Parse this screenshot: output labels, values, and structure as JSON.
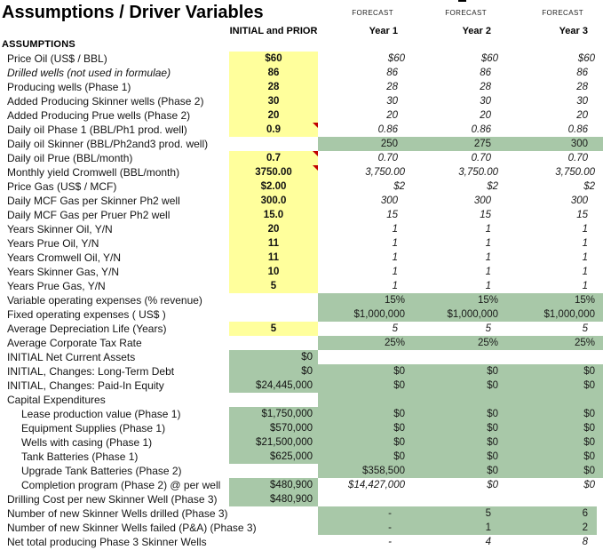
{
  "title": "Assumptions / Driver Variables",
  "headers": {
    "forecast_label": "FORECAST",
    "initial": "INITIAL and PRIOR",
    "years": [
      "Year 1",
      "Year 2",
      "Year 3"
    ],
    "section": "ASSUMPTIONS"
  },
  "colors": {
    "input_yellow": "#FFFF9C",
    "calc_green": "#A8C8A8",
    "comment_red": "#C00000"
  },
  "rows": [
    {
      "label": "Price Oil (US$ / BBL)",
      "init": {
        "v": "$60",
        "bg": "yellow"
      },
      "fc": {
        "v": [
          "$60",
          "$60",
          "$60"
        ],
        "bg": "white"
      }
    },
    {
      "label": "Drilled wells (not used in formulae)",
      "li": true,
      "init": {
        "v": "86",
        "bg": "yellow"
      },
      "fc": {
        "v": [
          "86",
          "86",
          "86"
        ],
        "bg": "white"
      }
    },
    {
      "label": "Producing wells (Phase 1)",
      "init": {
        "v": "28",
        "bg": "yellow"
      },
      "fc": {
        "v": [
          "28",
          "28",
          "28"
        ],
        "bg": "white"
      }
    },
    {
      "label": "Added Producing Skinner wells (Phase 2)",
      "init": {
        "v": "30",
        "bg": "yellow"
      },
      "fc": {
        "v": [
          "30",
          "30",
          "30"
        ],
        "bg": "white"
      }
    },
    {
      "label": "Added Producing Prue wells (Phase 2)",
      "init": {
        "v": "20",
        "bg": "yellow"
      },
      "fc": {
        "v": [
          "20",
          "20",
          "20"
        ],
        "bg": "white"
      }
    },
    {
      "label": "Daily oil Phase 1 (BBL/Ph1 prod. well)",
      "init": {
        "v": "0.9",
        "bg": "yellow",
        "c": true
      },
      "fc": {
        "v": [
          "0.86",
          "0.86",
          "0.86"
        ],
        "bg": "white"
      }
    },
    {
      "label": "Daily oil Skinner (BBL/Ph2and3 prod. well)",
      "init": {
        "v": "",
        "bg": "white"
      },
      "fc": {
        "v": [
          "250",
          "275",
          "300"
        ],
        "bg": "green"
      }
    },
    {
      "label": "Daily oil Prue (BBL/month)",
      "init": {
        "v": "0.7",
        "bg": "yellow",
        "c": true
      },
      "fc": {
        "v": [
          "0.70",
          "0.70",
          "0.70"
        ],
        "bg": "white"
      }
    },
    {
      "label": "Monthly yield Cromwell (BBL/month)",
      "init": {
        "v": "3750.00",
        "bg": "yellow",
        "c": true
      },
      "fc": {
        "v": [
          "3,750.00",
          "3,750.00",
          "3,750.00"
        ],
        "bg": "white"
      }
    },
    {
      "label": "Price Gas (US$ / MCF)",
      "init": {
        "v": "$2.00",
        "bg": "yellow"
      },
      "fc": {
        "v": [
          "$2",
          "$2",
          "$2"
        ],
        "bg": "white"
      }
    },
    {
      "label": "Daily MCF Gas per Skinner Ph2 well",
      "init": {
        "v": "300.0",
        "bg": "yellow"
      },
      "fc": {
        "v": [
          "300",
          "300",
          "300"
        ],
        "bg": "white"
      }
    },
    {
      "label": "Daily MCF Gas per Pruer Ph2 well",
      "init": {
        "v": "15.0",
        "bg": "yellow"
      },
      "fc": {
        "v": [
          "15",
          "15",
          "15"
        ],
        "bg": "white"
      }
    },
    {
      "label": "Years Skinner Oil, Y/N",
      "init": {
        "v": "20",
        "bg": "yellow"
      },
      "fc": {
        "v": [
          "1",
          "1",
          "1"
        ],
        "bg": "white"
      }
    },
    {
      "label": "Years Prue Oil, Y/N",
      "init": {
        "v": "11",
        "bg": "yellow"
      },
      "fc": {
        "v": [
          "1",
          "1",
          "1"
        ],
        "bg": "white"
      }
    },
    {
      "label": "Years Cromwell Oil, Y/N",
      "init": {
        "v": "11",
        "bg": "yellow"
      },
      "fc": {
        "v": [
          "1",
          "1",
          "1"
        ],
        "bg": "white"
      }
    },
    {
      "label": "Years Skinner Gas, Y/N",
      "init": {
        "v": "10",
        "bg": "yellow"
      },
      "fc": {
        "v": [
          "1",
          "1",
          "1"
        ],
        "bg": "white"
      }
    },
    {
      "label": "Years Prue Gas, Y/N",
      "init": {
        "v": "5",
        "bg": "yellow"
      },
      "fc": {
        "v": [
          "1",
          "1",
          "1"
        ],
        "bg": "white"
      }
    },
    {
      "label": "Variable operating expenses (% revenue)",
      "init": {
        "v": "",
        "bg": "white"
      },
      "fc": {
        "v": [
          "15%",
          "15%",
          "15%"
        ],
        "bg": "green"
      }
    },
    {
      "label": "Fixed operating expenses ( US$ )",
      "init": {
        "v": "",
        "bg": "white"
      },
      "fc": {
        "v": [
          "$1,000,000",
          "$1,000,000",
          "$1,000,000"
        ],
        "bg": "green"
      }
    },
    {
      "label": "Average Depreciation Life (Years)",
      "init": {
        "v": "5",
        "bg": "yellow"
      },
      "fc": {
        "v": [
          "5",
          "5",
          "5"
        ],
        "bg": "white"
      }
    },
    {
      "label": "Average Corporate Tax Rate",
      "init": {
        "v": "",
        "bg": "white"
      },
      "fc": {
        "v": [
          "25%",
          "25%",
          "25%"
        ],
        "bg": "green"
      }
    },
    {
      "label": "INITIAL Net Current Assets",
      "init": {
        "v": "$0",
        "bg": "green"
      },
      "fc": {
        "v": [
          "",
          "",
          ""
        ],
        "bg": "white"
      }
    },
    {
      "label": "INITIAL, Changes: Long-Term Debt",
      "init": {
        "v": "$0",
        "bg": "green"
      },
      "fc": {
        "v": [
          "$0",
          "$0",
          "$0"
        ],
        "bg": "green"
      }
    },
    {
      "label": "INITIAL, Changes: Paid-In Equity",
      "init": {
        "v": "$24,445,000",
        "bg": "green"
      },
      "fc": {
        "v": [
          "$0",
          "$0",
          "$0"
        ],
        "bg": "green"
      }
    },
    {
      "label": "Capital Expenditures",
      "init": {
        "v": "",
        "bg": "white"
      },
      "fc": {
        "v": [
          "",
          "",
          ""
        ],
        "bg": "green"
      }
    },
    {
      "label": "Lease production value (Phase 1)",
      "ind": 2,
      "init": {
        "v": "$1,750,000",
        "bg": "green"
      },
      "fc": {
        "v": [
          "$0",
          "$0",
          "$0"
        ],
        "bg": "green"
      }
    },
    {
      "label": "Equipment Supplies (Phase 1)",
      "ind": 2,
      "init": {
        "v": "$570,000",
        "bg": "green"
      },
      "fc": {
        "v": [
          "$0",
          "$0",
          "$0"
        ],
        "bg": "green"
      }
    },
    {
      "label": "Wells with casing (Phase 1)",
      "ind": 2,
      "init": {
        "v": "$21,500,000",
        "bg": "green"
      },
      "fc": {
        "v": [
          "$0",
          "$0",
          "$0"
        ],
        "bg": "green"
      }
    },
    {
      "label": "Tank Batteries (Phase 1)",
      "ind": 2,
      "init": {
        "v": "$625,000",
        "bg": "green"
      },
      "fc": {
        "v": [
          "$0",
          "$0",
          "$0"
        ],
        "bg": "green"
      }
    },
    {
      "label": "Upgrade Tank Batteries (Phase 2)",
      "ind": 2,
      "init": {
        "v": "",
        "bg": "white"
      },
      "fc": {
        "v": [
          "$358,500",
          "$0",
          "$0"
        ],
        "bg": "green"
      }
    },
    {
      "label": "Completion program (Phase 2) @ per well",
      "ind": 2,
      "init": {
        "v": "$480,900",
        "bg": "green"
      },
      "fc": {
        "v": [
          "$14,427,000",
          "$0",
          "$0"
        ],
        "bg": "white"
      }
    },
    {
      "label": "Drilling Cost per new Skinner Well (Phase 3)",
      "init": {
        "v": "$480,900",
        "bg": "green"
      },
      "fc": {
        "v": [
          "",
          "",
          ""
        ],
        "bg": "white"
      }
    },
    {
      "label": "Number of new Skinner Wells drilled (Phase 3)",
      "init": {
        "v": "",
        "bg": "white"
      },
      "fc": {
        "v": [
          "-",
          "5",
          "6"
        ],
        "bg": "green-clip"
      }
    },
    {
      "label": "Number of new Skinner Wells failed (P&A) (Phase 3)",
      "init": {
        "v": "",
        "bg": "white"
      },
      "fc": {
        "v": [
          "-",
          "1",
          "2"
        ],
        "bg": "green-clip"
      }
    },
    {
      "label": "Net total producing Phase 3 Skinner Wells",
      "init": {
        "v": "",
        "bg": "white"
      },
      "fc": {
        "v": [
          "-",
          "4",
          "8"
        ],
        "bg": "white"
      }
    }
  ]
}
